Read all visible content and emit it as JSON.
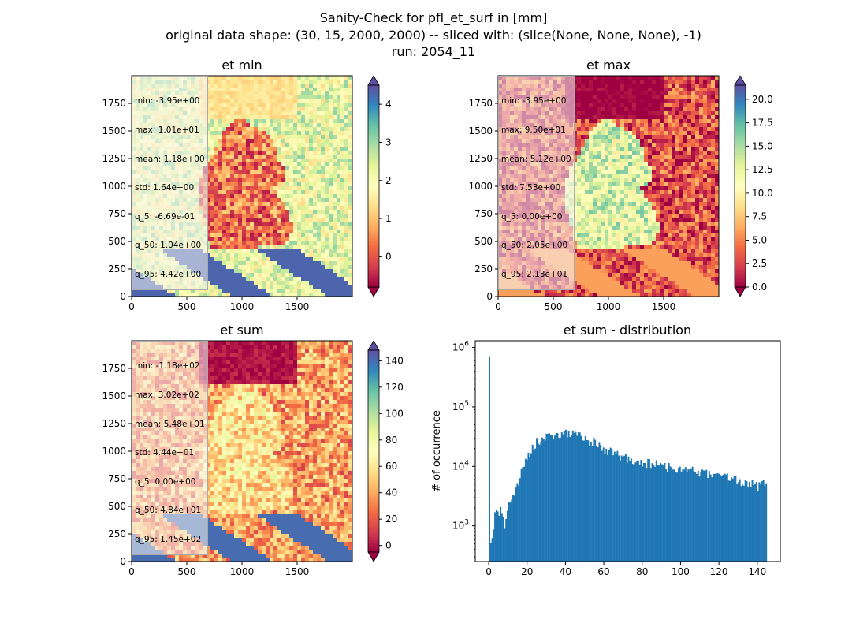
{
  "figure": {
    "suptitle_lines": [
      "Sanity-Check for pfl_et_surf in [mm]",
      "original data shape: (30, 15, 2000, 2000) -- sliced with: (slice(None, None, None), -1)",
      "run: 2054_11"
    ]
  },
  "colors": {
    "spectral": [
      "#9e0142",
      "#d53e4f",
      "#f46d43",
      "#fdae61",
      "#fee08b",
      "#ffffbf",
      "#e6f598",
      "#abdda4",
      "#66c2a5",
      "#3288bd",
      "#5e4fa2"
    ],
    "hist_bar": "#1f77b4",
    "axis": "#000000",
    "mask": "#ffffff"
  },
  "chart_data": [
    {
      "type": "heatmap",
      "id": "et_min",
      "title": "et min",
      "x_ticks": [
        "0",
        "500",
        "1000",
        "1500"
      ],
      "y_ticks": [
        "0",
        "250",
        "500",
        "750",
        "1000",
        "1250",
        "1500",
        "1750"
      ],
      "xlim": [
        0,
        2000
      ],
      "ylim": [
        0,
        2000
      ],
      "colorbar": {
        "ticks": [
          "0",
          "1",
          "2",
          "3",
          "4"
        ],
        "range": [
          -0.8,
          4.5
        ],
        "extend": "both",
        "cmap": "Spectral"
      },
      "stats": [
        "min: -3.95e+00",
        "max: 1.01e+01",
        "mean: 1.18e+00",
        "std: 1.64e+00",
        "q_5: -6.69e-01",
        "q_50: 1.04e+00",
        "q_95: 4.42e+00"
      ],
      "pattern": {
        "inside_mean": 0.3,
        "outside_mean": 2.2,
        "north_value": 1.4,
        "south_band": 4.3
      }
    },
    {
      "type": "heatmap",
      "id": "et_max",
      "title": "et max",
      "x_ticks": [
        "0",
        "500",
        "1000",
        "1500"
      ],
      "y_ticks": [
        "0",
        "250",
        "500",
        "750",
        "1000",
        "1250",
        "1500",
        "1750"
      ],
      "xlim": [
        0,
        2000
      ],
      "ylim": [
        0,
        2000
      ],
      "colorbar": {
        "ticks": [
          "0.0",
          "2.5",
          "5.0",
          "7.5",
          "10.0",
          "12.5",
          "15.0",
          "17.5",
          "20.0"
        ],
        "range": [
          0,
          21.5
        ],
        "extend": "both",
        "cmap": "Spectral"
      },
      "stats": [
        "min: -3.95e+00",
        "max: 9.50e+01",
        "mean: 5.12e+00",
        "std: 7.53e+00",
        "q_5: 0.00e+00",
        "q_50: 2.05e+00",
        "q_95: 2.13e+01"
      ],
      "pattern": {
        "inside_mean": 13,
        "outside_mean": 3,
        "north_value": 0,
        "south_band": 6
      }
    },
    {
      "type": "heatmap",
      "id": "et_sum",
      "title": "et sum",
      "x_ticks": [
        "0",
        "500",
        "1000",
        "1500"
      ],
      "y_ticks": [
        "0",
        "250",
        "500",
        "750",
        "1000",
        "1250",
        "1500",
        "1750"
      ],
      "xlim": [
        0,
        2000
      ],
      "ylim": [
        0,
        2000
      ],
      "colorbar": {
        "ticks": [
          "0",
          "20",
          "40",
          "60",
          "80",
          "100",
          "120",
          "140"
        ],
        "range": [
          -5,
          148
        ],
        "extend": "both",
        "cmap": "Spectral"
      },
      "stats": [
        "min: -1.18e+02",
        "max: 3.02e+02",
        "mean: 5.48e+01",
        "std: 4.44e+01",
        "q_5: 0.00e+00",
        "q_50: 4.84e+01",
        "q_95: 1.45e+02"
      ],
      "pattern": {
        "inside_mean": 60,
        "outside_mean": 38,
        "north_value": 0,
        "south_band": 140
      }
    },
    {
      "type": "bar",
      "id": "et_sum_hist",
      "title": "et sum - distribution",
      "ylabel": "# of occurrence",
      "yscale": "log",
      "x_ticks": [
        "0",
        "20",
        "40",
        "60",
        "80",
        "100",
        "120",
        "140"
      ],
      "y_ticks": [
        "10^3",
        "10^4",
        "10^5",
        "10^6"
      ],
      "xlim": [
        -7,
        152
      ],
      "ylim": [
        250,
        1300000
      ],
      "bins": {
        "start": 0,
        "width": 0.725
      },
      "envelope": [
        [
          0,
          800000
        ],
        [
          1,
          450
        ],
        [
          3,
          1500
        ],
        [
          6,
          1800
        ],
        [
          8,
          1000
        ],
        [
          10,
          2500
        ],
        [
          13,
          3500
        ],
        [
          15,
          5000
        ],
        [
          18,
          11000
        ],
        [
          20,
          15000
        ],
        [
          22,
          20000
        ],
        [
          25,
          26000
        ],
        [
          30,
          31000
        ],
        [
          35,
          34000
        ],
        [
          40,
          36000
        ],
        [
          45,
          35000
        ],
        [
          50,
          30000
        ],
        [
          55,
          25000
        ],
        [
          60,
          20000
        ],
        [
          65,
          16000
        ],
        [
          70,
          14000
        ],
        [
          75,
          12000
        ],
        [
          80,
          11500
        ],
        [
          85,
          11000
        ],
        [
          90,
          10500
        ],
        [
          95,
          9500
        ],
        [
          100,
          9000
        ],
        [
          105,
          8500
        ],
        [
          110,
          8000
        ],
        [
          115,
          7500
        ],
        [
          120,
          7000
        ],
        [
          125,
          6500
        ],
        [
          130,
          5500
        ],
        [
          135,
          5500
        ],
        [
          140,
          4500
        ],
        [
          144,
          5200
        ]
      ]
    }
  ]
}
